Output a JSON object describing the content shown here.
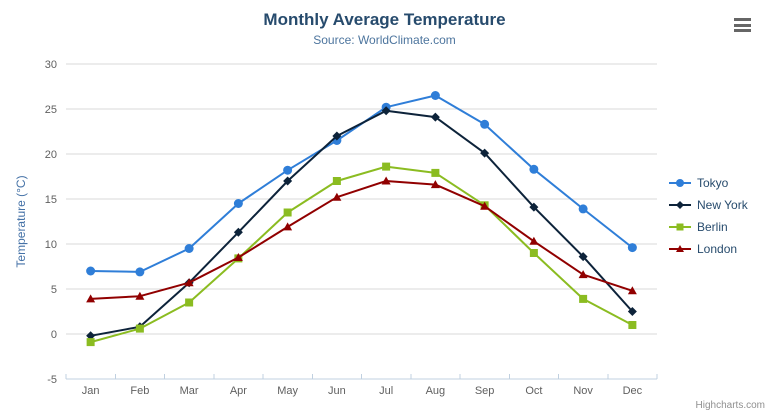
{
  "header": {
    "title": "Monthly Average Temperature",
    "subtitle": "Source: WorldClimate.com"
  },
  "export_menu": {
    "icon": "hamburger-menu-icon"
  },
  "credits": "Highcharts.com",
  "colors": {
    "title": "#274b6d",
    "subtitle": "#4d759e",
    "axis_label": "#606060",
    "y_axis_title": "#4572a7",
    "gridline": "#d8d8d8",
    "axis_line": "#c0d0e0",
    "legend_text": "#274b6d",
    "credits": "#909090",
    "menu_icon": "#666666"
  },
  "chart_data": {
    "type": "line",
    "title": "Monthly Average Temperature",
    "subtitle": "Source: WorldClimate.com",
    "categories": [
      "Jan",
      "Feb",
      "Mar",
      "Apr",
      "May",
      "Jun",
      "Jul",
      "Aug",
      "Sep",
      "Oct",
      "Nov",
      "Dec"
    ],
    "series": [
      {
        "name": "Tokyo",
        "color": "#2f7ed8",
        "symbol": "circle",
        "values": [
          7.0,
          6.9,
          9.5,
          14.5,
          18.2,
          21.5,
          25.2,
          26.5,
          23.3,
          18.3,
          13.9,
          9.6
        ]
      },
      {
        "name": "New York",
        "color": "#0d233a",
        "symbol": "diamond",
        "values": [
          -0.2,
          0.8,
          5.7,
          11.3,
          17.0,
          22.0,
          24.8,
          24.1,
          20.1,
          14.1,
          8.6,
          2.5
        ]
      },
      {
        "name": "Berlin",
        "color": "#8bbc21",
        "symbol": "square",
        "values": [
          -0.9,
          0.6,
          3.5,
          8.4,
          13.5,
          17.0,
          18.6,
          17.9,
          14.3,
          9.0,
          3.9,
          1.0
        ]
      },
      {
        "name": "London",
        "color": "#910000",
        "symbol": "triangle",
        "values": [
          3.9,
          4.2,
          5.7,
          8.5,
          11.9,
          15.2,
          17.0,
          16.6,
          14.2,
          10.3,
          6.6,
          4.8
        ]
      }
    ],
    "xlabel": "",
    "ylabel": "Temperature (°C)",
    "ylim": [
      -5,
      30
    ],
    "ytick_step": 5,
    "grid": true,
    "legend_position": "right"
  }
}
